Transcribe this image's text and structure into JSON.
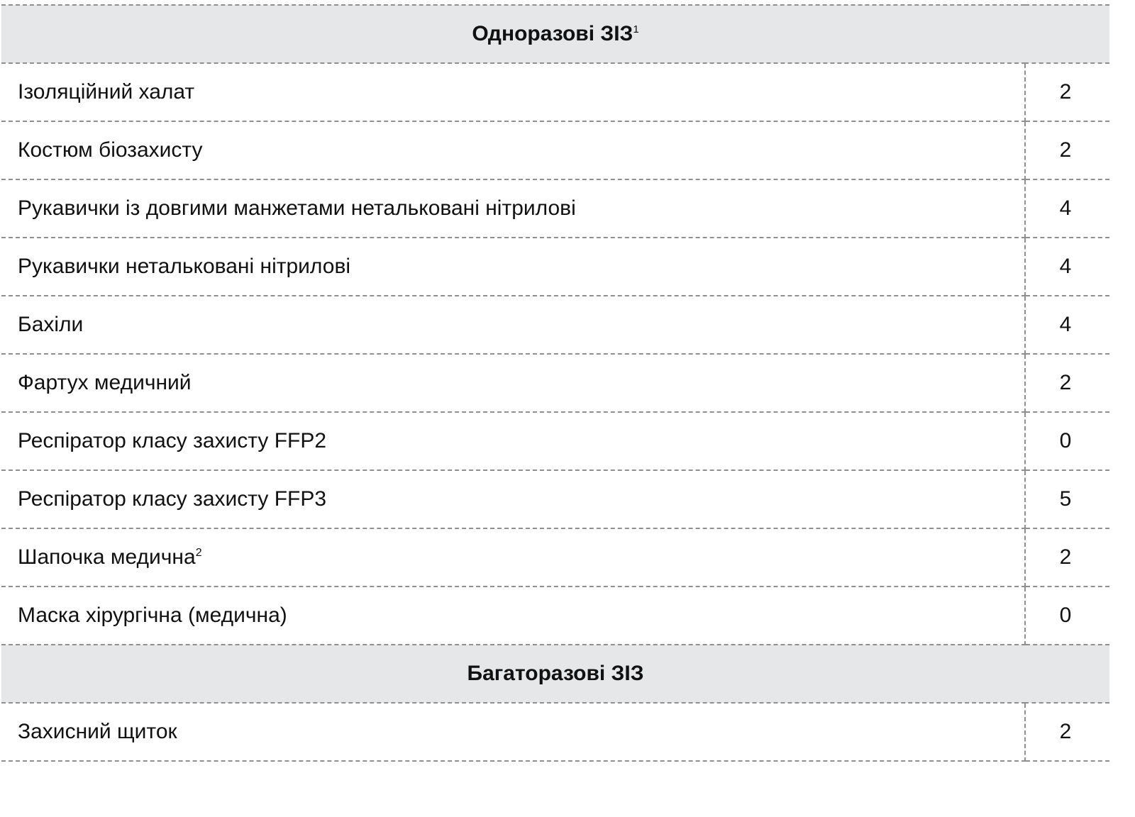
{
  "sections": [
    {
      "title": "Одноразові ЗІЗ",
      "title_sup": "1",
      "items": [
        {
          "name": "Ізоляційний халат",
          "name_sup": "",
          "qty": "2"
        },
        {
          "name": "Костюм біозахисту",
          "name_sup": "",
          "qty": "2"
        },
        {
          "name": "Рукавички із довгими манжетами нетальковані нітрилові",
          "name_sup": "",
          "qty": "4"
        },
        {
          "name": "Рукавички нетальковані нітрилові",
          "name_sup": "",
          "qty": "4"
        },
        {
          "name": "Бахіли",
          "name_sup": "",
          "qty": "4"
        },
        {
          "name": "Фартух медичний",
          "name_sup": "",
          "qty": "2"
        },
        {
          "name": "Респіратор класу захисту FFP2",
          "name_sup": "",
          "qty": "0"
        },
        {
          "name": "Респіратор класу захисту FFP3",
          "name_sup": "",
          "qty": "5"
        },
        {
          "name": "Шапочка медична",
          "name_sup": "2",
          "qty": "2"
        },
        {
          "name": "Маска хірургічна (медична)",
          "name_sup": "",
          "qty": "0"
        }
      ]
    },
    {
      "title": "Багаторазові ЗІЗ",
      "title_sup": "",
      "items": [
        {
          "name": "Захисний щиток",
          "name_sup": "",
          "qty": "2"
        }
      ]
    }
  ],
  "colors": {
    "header_bg": "#e6e7e9",
    "border": "#8f8f8f",
    "text": "#111111"
  }
}
